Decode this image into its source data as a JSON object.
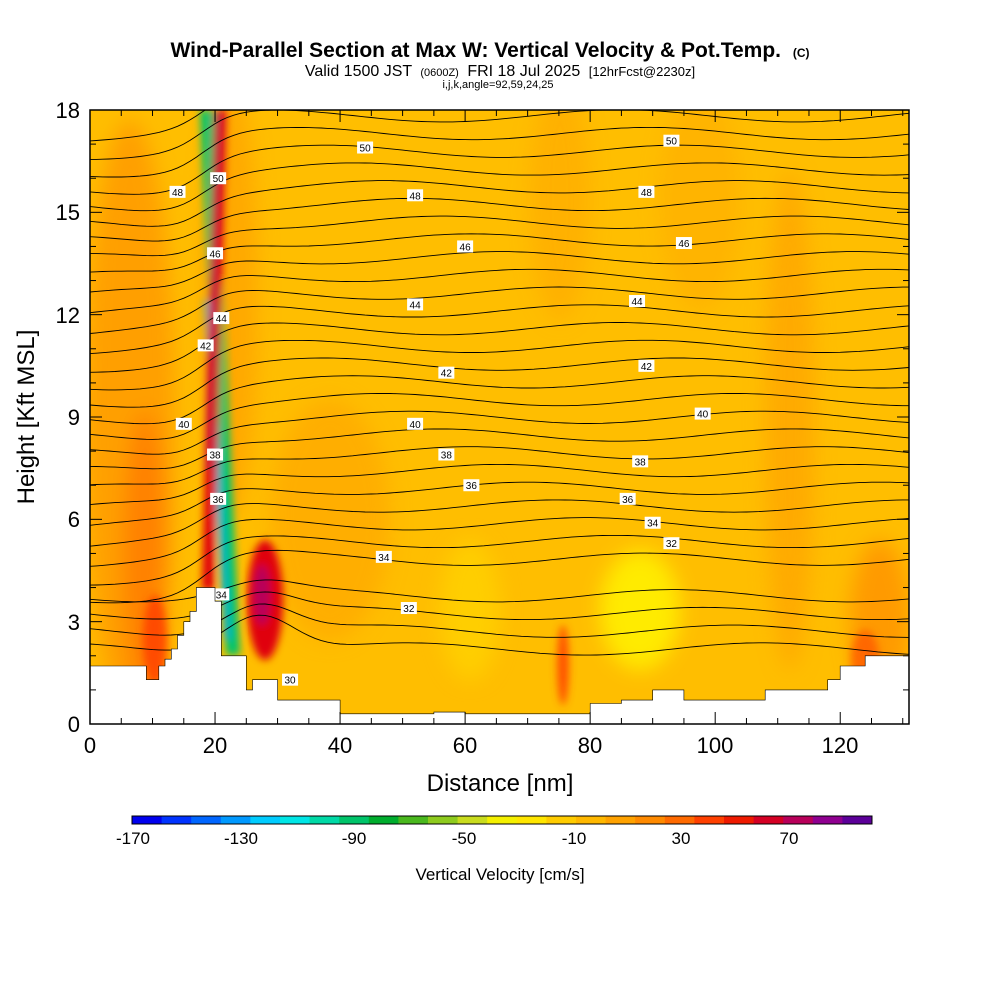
{
  "chart_data": {
    "type": "heatmap",
    "title": "Wind-Parallel Section at Max W: Vertical Velocity & Pot.Temp.",
    "title_mark": "(C)",
    "subtitle": {
      "valid_prefix": "Valid 1500 JST",
      "utc": "(0600Z)",
      "date": "FRI 18 Jul 2025",
      "forecast": "[12hrFcst@2230z]"
    },
    "params": "i,j,k,angle=92,59,24,25",
    "xlabel": "Distance [nm]",
    "ylabel": "Height [Kft MSL]",
    "xlim": [
      0,
      131
    ],
    "ylim": [
      0,
      18
    ],
    "x_ticks": [
      "0",
      "20",
      "40",
      "60",
      "80",
      "100",
      "120"
    ],
    "y_ticks": [
      "0",
      "3",
      "6",
      "9",
      "12",
      "15",
      "18"
    ],
    "colorbar": {
      "label": "Vertical Velocity [cm/s]",
      "tick_labels": [
        "-170",
        "-130",
        "-90",
        "-50",
        "-10",
        "30",
        "70"
      ],
      "colors": [
        "#0000ee",
        "#0033ff",
        "#0066ff",
        "#0099ff",
        "#00ccff",
        "#00e6e6",
        "#00d9a6",
        "#00c46a",
        "#00ad2e",
        "#4ab81e",
        "#8ecb1e",
        "#c9dc1e",
        "#f4f000",
        "#ffe600",
        "#ffcc00",
        "#ffb800",
        "#ffa200",
        "#ff8a00",
        "#ff6a00",
        "#ff4000",
        "#ee1a00",
        "#d40024",
        "#b8005a",
        "#8f0090",
        "#5c0099"
      ]
    },
    "theta_contour_labels": [
      {
        "text": "50",
        "x": 44,
        "y": 16.9
      },
      {
        "text": "50",
        "x": 93,
        "y": 17.1
      },
      {
        "text": "50",
        "x": 20.5,
        "y": 16.0
      },
      {
        "text": "48",
        "x": 14,
        "y": 15.6
      },
      {
        "text": "48",
        "x": 52,
        "y": 15.5
      },
      {
        "text": "48",
        "x": 89,
        "y": 15.6
      },
      {
        "text": "46",
        "x": 20,
        "y": 13.8
      },
      {
        "text": "46",
        "x": 60,
        "y": 14.0
      },
      {
        "text": "46",
        "x": 95,
        "y": 14.1
      },
      {
        "text": "44",
        "x": 21,
        "y": 11.9
      },
      {
        "text": "44",
        "x": 52,
        "y": 12.3
      },
      {
        "text": "44",
        "x": 87.5,
        "y": 12.4
      },
      {
        "text": "42",
        "x": 18.5,
        "y": 11.1
      },
      {
        "text": "42",
        "x": 57,
        "y": 10.3
      },
      {
        "text": "42",
        "x": 89,
        "y": 10.5
      },
      {
        "text": "40",
        "x": 15,
        "y": 8.8
      },
      {
        "text": "40",
        "x": 52,
        "y": 8.8
      },
      {
        "text": "40",
        "x": 98,
        "y": 9.1
      },
      {
        "text": "38",
        "x": 20,
        "y": 7.9
      },
      {
        "text": "38",
        "x": 57,
        "y": 7.9
      },
      {
        "text": "38",
        "x": 88,
        "y": 7.7
      },
      {
        "text": "36",
        "x": 20.5,
        "y": 6.6
      },
      {
        "text": "36",
        "x": 61,
        "y": 7.0
      },
      {
        "text": "36",
        "x": 86,
        "y": 6.6
      },
      {
        "text": "34",
        "x": 21,
        "y": 3.8
      },
      {
        "text": "34",
        "x": 47,
        "y": 4.9
      },
      {
        "text": "34",
        "x": 90,
        "y": 5.9
      },
      {
        "text": "32",
        "x": 51,
        "y": 3.4
      },
      {
        "text": "32",
        "x": 93,
        "y": 5.3
      },
      {
        "text": "30",
        "x": 32,
        "y": 1.3
      }
    ],
    "terrain": [
      [
        0,
        1.7
      ],
      [
        9,
        1.7
      ],
      [
        9,
        1.3
      ],
      [
        11,
        1.3
      ],
      [
        11,
        1.7
      ],
      [
        12,
        1.7
      ],
      [
        12,
        1.9
      ],
      [
        13,
        1.9
      ],
      [
        13,
        2.2
      ],
      [
        14,
        2.2
      ],
      [
        14,
        2.6
      ],
      [
        15,
        2.6
      ],
      [
        15,
        3.0
      ],
      [
        16,
        3.0
      ],
      [
        16,
        3.3
      ],
      [
        17,
        3.3
      ],
      [
        17,
        4.0
      ],
      [
        20,
        4.0
      ],
      [
        20,
        3.6
      ],
      [
        21,
        3.6
      ],
      [
        21,
        2.0
      ],
      [
        25,
        2.0
      ],
      [
        25,
        1.0
      ],
      [
        26,
        1.0
      ],
      [
        26,
        1.3
      ],
      [
        30,
        1.3
      ],
      [
        30,
        0.7
      ],
      [
        40,
        0.7
      ],
      [
        40,
        0.3
      ],
      [
        55,
        0.3
      ],
      [
        55,
        0.35
      ],
      [
        60,
        0.35
      ],
      [
        60,
        0.3
      ],
      [
        80,
        0.3
      ],
      [
        80,
        0.6
      ],
      [
        85,
        0.6
      ],
      [
        85,
        0.7
      ],
      [
        90,
        0.7
      ],
      [
        90,
        1.0
      ],
      [
        95,
        1.0
      ],
      [
        95,
        0.7
      ],
      [
        108,
        0.7
      ],
      [
        108,
        1.0
      ],
      [
        118,
        1.0
      ],
      [
        118,
        1.3
      ],
      [
        120,
        1.3
      ],
      [
        120,
        1.7
      ],
      [
        124,
        1.7
      ],
      [
        124,
        2.0
      ],
      [
        131,
        2.0
      ]
    ]
  }
}
